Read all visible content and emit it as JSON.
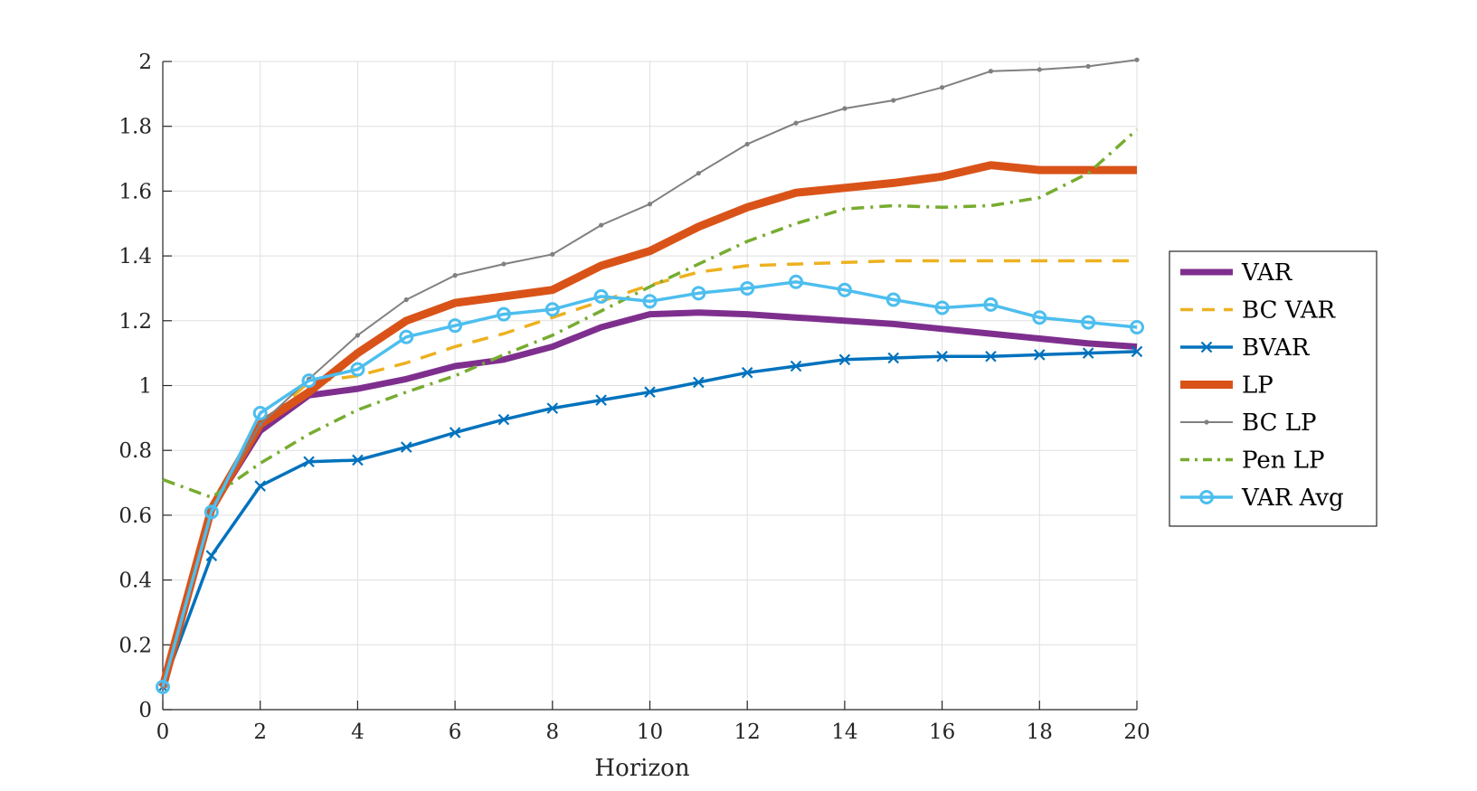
{
  "chart_data": {
    "type": "line",
    "title": "",
    "xlabel": "Horizon",
    "ylabel": "",
    "xlim": [
      0,
      20
    ],
    "ylim": [
      0,
      2
    ],
    "xticks": [
      0,
      2,
      4,
      6,
      8,
      10,
      12,
      14,
      16,
      18,
      20
    ],
    "yticks": [
      0,
      0.2,
      0.4,
      0.6,
      0.8,
      1,
      1.2,
      1.4,
      1.6,
      1.8,
      2
    ],
    "xtick_labels": [
      "0",
      "2",
      "4",
      "6",
      "8",
      "10",
      "12",
      "14",
      "16",
      "18",
      "20"
    ],
    "ytick_labels": [
      "0",
      "0.2",
      "0.4",
      "0.6",
      "0.8",
      "1",
      "1.2",
      "1.4",
      "1.6",
      "1.8",
      "2"
    ],
    "grid": true,
    "legend_position": "right",
    "x": [
      0,
      1,
      2,
      3,
      4,
      5,
      6,
      7,
      8,
      9,
      10,
      11,
      12,
      13,
      14,
      15,
      16,
      17,
      18,
      19,
      20
    ],
    "series": [
      {
        "name": "VAR",
        "color": "#7E2F8E",
        "style": "solid",
        "marker": "none",
        "values": [
          0.07,
          0.62,
          0.86,
          0.97,
          0.99,
          1.02,
          1.06,
          1.08,
          1.12,
          1.18,
          1.22,
          1.225,
          1.22,
          1.21,
          1.2,
          1.19,
          1.175,
          1.16,
          1.145,
          1.13,
          1.12
        ]
      },
      {
        "name": "BC VAR",
        "color": "#EDB120",
        "style": "dashed",
        "marker": "none",
        "values": [
          0.07,
          0.62,
          0.88,
          1.01,
          1.03,
          1.07,
          1.12,
          1.16,
          1.21,
          1.26,
          1.31,
          1.35,
          1.37,
          1.375,
          1.38,
          1.385,
          1.385,
          1.385,
          1.385,
          1.385,
          1.385
        ]
      },
      {
        "name": "BVAR",
        "color": "#0072BD",
        "style": "solid",
        "marker": "x",
        "values": [
          0.07,
          0.475,
          0.69,
          0.765,
          0.77,
          0.81,
          0.855,
          0.895,
          0.93,
          0.955,
          0.98,
          1.01,
          1.04,
          1.06,
          1.08,
          1.085,
          1.09,
          1.09,
          1.095,
          1.1,
          1.105
        ]
      },
      {
        "name": "LP",
        "color": "#D95319",
        "style": "solid",
        "marker": "none",
        "values": [
          0.07,
          0.62,
          0.88,
          0.98,
          1.1,
          1.2,
          1.255,
          1.275,
          1.295,
          1.37,
          1.415,
          1.49,
          1.55,
          1.595,
          1.61,
          1.625,
          1.645,
          1.68,
          1.665,
          1.665,
          1.665
        ]
      },
      {
        "name": "BC LP",
        "color": "#808080",
        "style": "solid",
        "marker": "dot",
        "values": [
          0.07,
          0.62,
          0.88,
          1.02,
          1.155,
          1.265,
          1.34,
          1.375,
          1.405,
          1.495,
          1.56,
          1.655,
          1.745,
          1.81,
          1.855,
          1.88,
          1.92,
          1.97,
          1.975,
          1.985,
          2.005
        ]
      },
      {
        "name": "Pen LP",
        "color": "#77AC30",
        "style": "dashdot",
        "marker": "none",
        "values": [
          0.71,
          0.655,
          0.76,
          0.85,
          0.925,
          0.98,
          1.03,
          1.095,
          1.155,
          1.23,
          1.305,
          1.375,
          1.445,
          1.5,
          1.545,
          1.555,
          1.55,
          1.555,
          1.58,
          1.655,
          1.79
        ]
      },
      {
        "name": "VAR Avg",
        "color": "#4DBEEE",
        "style": "solid",
        "marker": "circle",
        "values": [
          0.07,
          0.61,
          0.915,
          1.015,
          1.05,
          1.15,
          1.185,
          1.22,
          1.235,
          1.275,
          1.26,
          1.285,
          1.3,
          1.32,
          1.295,
          1.265,
          1.24,
          1.25,
          1.21,
          1.195,
          1.18
        ]
      }
    ]
  }
}
